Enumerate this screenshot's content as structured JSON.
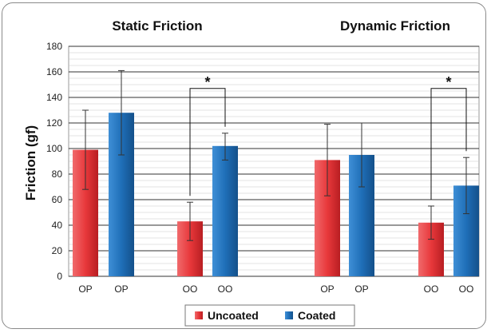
{
  "chart_data": {
    "type": "bar",
    "panel_titles": [
      "Static Friction",
      "Dynamic Friction"
    ],
    "ylabel": "Friction (gf)",
    "ylim": [
      0,
      180
    ],
    "yticks": [
      "0",
      "20",
      "40",
      "60",
      "80",
      "100",
      "120",
      "140",
      "160",
      "180"
    ],
    "grid": true,
    "legend_position": "bottom-center",
    "categories": [
      "OP",
      "OP",
      "OO",
      "OO",
      "OP",
      "OP",
      "OO",
      "OO"
    ],
    "bars": [
      {
        "category": "OP",
        "series": "Uncoated",
        "panel": "Static Friction",
        "value": 99,
        "err_high": 130,
        "err_low": 68
      },
      {
        "category": "OP",
        "series": "Coated",
        "panel": "Static Friction",
        "value": 128,
        "err_high": 161,
        "err_low": 95
      },
      {
        "category": "OO",
        "series": "Uncoated",
        "panel": "Static Friction",
        "value": 43,
        "err_high": 58,
        "err_low": 28
      },
      {
        "category": "OO",
        "series": "Coated",
        "panel": "Static Friction",
        "value": 102,
        "err_high": 112,
        "err_low": 91
      },
      {
        "category": "OP",
        "series": "Uncoated",
        "panel": "Dynamic Friction",
        "value": 91,
        "err_high": 119,
        "err_low": 63
      },
      {
        "category": "OP",
        "series": "Coated",
        "panel": "Dynamic Friction",
        "value": 95,
        "err_high": 120,
        "err_low": 70
      },
      {
        "category": "OO",
        "series": "Uncoated",
        "panel": "Dynamic Friction",
        "value": 42,
        "err_high": 55,
        "err_low": 29
      },
      {
        "category": "OO",
        "series": "Coated",
        "panel": "Dynamic Friction",
        "value": 71,
        "err_high": 93,
        "err_low": 49
      }
    ],
    "significance": [
      {
        "bars": [
          2,
          3
        ],
        "y": 147,
        "label": "*"
      },
      {
        "bars": [
          6,
          7
        ],
        "y": 147,
        "label": "*"
      }
    ],
    "series": [
      {
        "name": "Uncoated",
        "color": "#e8383b"
      },
      {
        "name": "Coated",
        "color": "#1f6fb8"
      }
    ]
  }
}
